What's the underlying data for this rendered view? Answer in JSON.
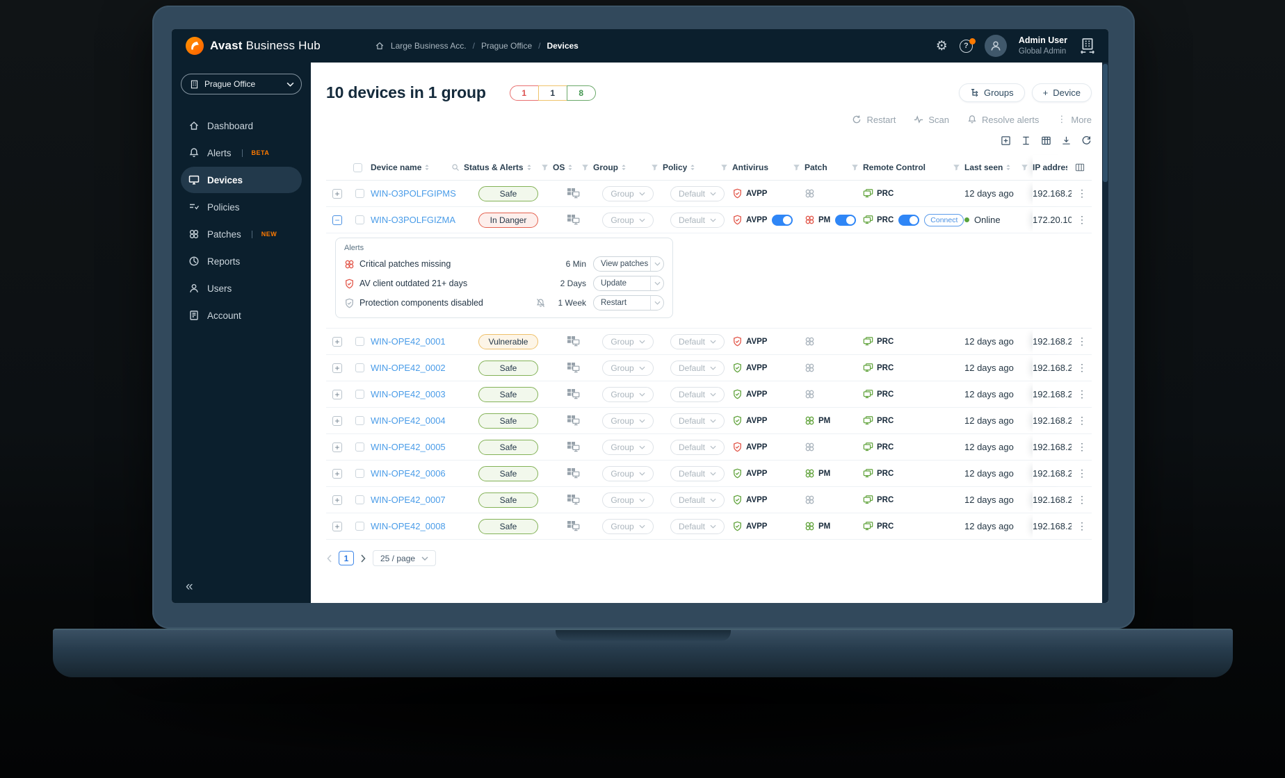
{
  "header": {
    "brand_bold": "Avast",
    "brand_rest": " Business Hub",
    "breadcrumb": [
      "Large Business Acc.",
      "Prague Office",
      "Devices"
    ],
    "user_name": "Admin User",
    "user_role": "Global Admin",
    "help_glyph": "?"
  },
  "sidebar": {
    "location_label": "Prague Office",
    "items": [
      {
        "label": "Dashboard"
      },
      {
        "label": "Alerts",
        "badge": "BETA"
      },
      {
        "label": "Devices"
      },
      {
        "label": "Policies"
      },
      {
        "label": "Patches",
        "badge": "NEW"
      },
      {
        "label": "Reports"
      },
      {
        "label": "Users"
      },
      {
        "label": "Account"
      }
    ]
  },
  "page": {
    "title": "10 devices in 1 group",
    "counts": {
      "danger": "1",
      "vulnerable": "1",
      "safe": "8"
    },
    "groups_label": "Groups",
    "device_label": "Device",
    "device_plus": "+",
    "toolbar": {
      "restart": "Restart",
      "scan": "Scan",
      "resolve": "Resolve alerts",
      "more": "More"
    }
  },
  "table": {
    "headers": {
      "device_name": "Device name",
      "status": "Status & Alerts",
      "os": "OS",
      "group": "Group",
      "policy": "Policy",
      "antivirus": "Antivirus",
      "patch": "Patch",
      "remote_control": "Remote Control",
      "last_seen": "Last seen",
      "ip": "IP address"
    },
    "common": {
      "group": "Group",
      "policy": "Default",
      "antivirus": "AVPP",
      "patch": "PM",
      "remote": "PRC",
      "connect": "Connect",
      "online": "Online"
    },
    "rows": [
      {
        "name": "WIN-O3POLFGIPMS",
        "status": "Safe",
        "status_type": "safe",
        "av_state": "red",
        "av_toggle": false,
        "patch_state": "off",
        "patch_toggle": false,
        "rc_toggle": false,
        "connect": false,
        "online": false,
        "last_seen": "12 days ago",
        "ip": "192.168.2",
        "expanded": false
      },
      {
        "name": "WIN-O3POLFGIZMA",
        "status": "In Danger",
        "status_type": "danger",
        "av_state": "red",
        "av_toggle": true,
        "patch_state": "red",
        "patch_toggle": true,
        "rc_toggle": true,
        "connect": true,
        "online": true,
        "last_seen": "Online",
        "ip": "172.20.10",
        "expanded": true
      },
      {
        "name": "WIN-OPE42_0001",
        "status": "Vulnerable",
        "status_type": "vulnerable",
        "av_state": "red",
        "av_toggle": false,
        "patch_state": "off",
        "patch_toggle": false,
        "rc_toggle": false,
        "connect": false,
        "online": false,
        "last_seen": "12 days ago",
        "ip": "192.168.2",
        "expanded": false
      },
      {
        "name": "WIN-OPE42_0002",
        "status": "Safe",
        "status_type": "safe",
        "av_state": "green",
        "av_toggle": false,
        "patch_state": "off",
        "patch_toggle": false,
        "rc_toggle": false,
        "connect": false,
        "online": false,
        "last_seen": "12 days ago",
        "ip": "192.168.2",
        "expanded": false
      },
      {
        "name": "WIN-OPE42_0003",
        "status": "Safe",
        "status_type": "safe",
        "av_state": "green",
        "av_toggle": false,
        "patch_state": "off",
        "patch_toggle": false,
        "rc_toggle": false,
        "connect": false,
        "online": false,
        "last_seen": "12 days ago",
        "ip": "192.168.2",
        "expanded": false
      },
      {
        "name": "WIN-OPE42_0004",
        "status": "Safe",
        "status_type": "safe",
        "av_state": "green",
        "av_toggle": false,
        "patch_state": "green",
        "patch_toggle": false,
        "rc_toggle": false,
        "connect": false,
        "online": false,
        "last_seen": "12 days ago",
        "ip": "192.168.2",
        "expanded": false
      },
      {
        "name": "WIN-OPE42_0005",
        "status": "Safe",
        "status_type": "safe",
        "av_state": "red",
        "av_toggle": false,
        "patch_state": "off",
        "patch_toggle": false,
        "rc_toggle": false,
        "connect": false,
        "online": false,
        "last_seen": "12 days ago",
        "ip": "192.168.2",
        "expanded": false
      },
      {
        "name": "WIN-OPE42_0006",
        "status": "Safe",
        "status_type": "safe",
        "av_state": "green",
        "av_toggle": false,
        "patch_state": "green",
        "patch_toggle": false,
        "rc_toggle": false,
        "connect": false,
        "online": false,
        "last_seen": "12 days ago",
        "ip": "192.168.2",
        "expanded": false
      },
      {
        "name": "WIN-OPE42_0007",
        "status": "Safe",
        "status_type": "safe",
        "av_state": "green",
        "av_toggle": false,
        "patch_state": "off",
        "patch_toggle": false,
        "rc_toggle": false,
        "connect": false,
        "online": false,
        "last_seen": "12 days ago",
        "ip": "192.168.2",
        "expanded": false
      },
      {
        "name": "WIN-OPE42_0008",
        "status": "Safe",
        "status_type": "safe",
        "av_state": "green",
        "av_toggle": false,
        "patch_state": "green",
        "patch_toggle": false,
        "rc_toggle": false,
        "connect": false,
        "online": false,
        "last_seen": "12 days ago",
        "ip": "192.168.2",
        "expanded": false
      }
    ]
  },
  "alerts_panel": {
    "title": "Alerts",
    "items": [
      {
        "icon": "patch-red",
        "text": "Critical patches missing",
        "time": "6 Min",
        "action": "View patches",
        "muted": false
      },
      {
        "icon": "shield-red",
        "text": "AV client outdated 21+ days",
        "time": "2 Days",
        "action": "Update",
        "muted": false
      },
      {
        "icon": "shield-gray",
        "text": "Protection components disabled",
        "time": "1 Week",
        "action": "Restart",
        "muted": true
      }
    ]
  },
  "pagination": {
    "page": "1",
    "page_size": "25 / page"
  }
}
